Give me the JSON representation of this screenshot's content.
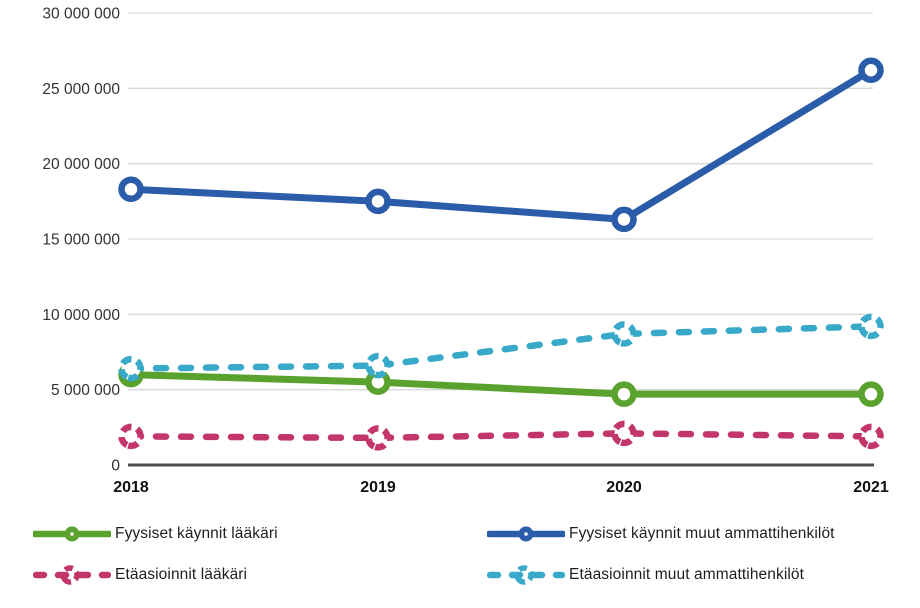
{
  "chart_data": {
    "type": "line",
    "x": [
      "2018",
      "2019",
      "2020",
      "2021"
    ],
    "series": [
      {
        "name": "Fyysiset käynnit lääkäri",
        "values": [
          6000000,
          5500000,
          4700000,
          4700000
        ],
        "color": "#5aa22e",
        "style": "solid"
      },
      {
        "name": "Fyysiset käynnit muut ammattihenkilöt",
        "values": [
          18300000,
          17500000,
          16300000,
          26200000
        ],
        "color": "#2b5ca9",
        "style": "solid"
      },
      {
        "name": "Etäasioinnit lääkäri",
        "values": [
          1900000,
          1800000,
          2100000,
          1900000
        ],
        "color": "#c2366b",
        "style": "dashed"
      },
      {
        "name": "Etäasioinnit muut ammattihenkilöt",
        "values": [
          6400000,
          6600000,
          8700000,
          9200000
        ],
        "color": "#38a9c8",
        "style": "dashed"
      }
    ],
    "title": "",
    "xlabel": "",
    "ylabel": "",
    "ylim": [
      0,
      30000000
    ],
    "ytick_step": 5000000,
    "ytick_labels": [
      "0",
      "5 000 000",
      "10 000 000",
      "15 000 000",
      "20 000 000",
      "25 000 000",
      "30 000 000"
    ],
    "grid": "horizontal",
    "legend_position": "bottom",
    "colors": {
      "gridline": "#d9d9d9",
      "axis_line": "#4d4d4d",
      "tick_text": "#333333",
      "x_label_text": "#111111"
    }
  }
}
